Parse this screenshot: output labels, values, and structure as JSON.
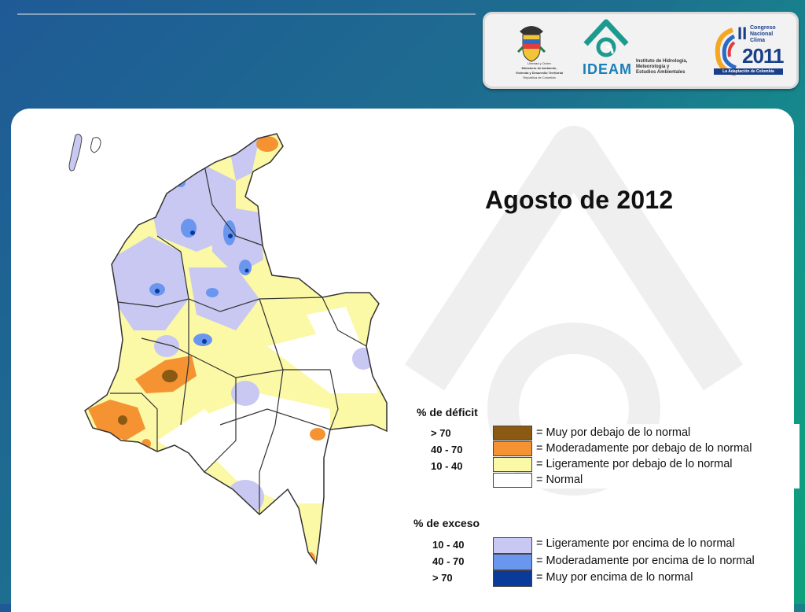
{
  "header": {
    "logos": [
      {
        "name": "ministerio-ambiente",
        "lines": [
          "Libertad y Orden",
          "Ministerio de Ambiente,",
          "Vivienda y Desarrollo Territorial",
          "República de Colombia"
        ]
      },
      {
        "name": "ideam",
        "brand": "IDEAM",
        "lines": [
          "Instituto de Hidrología,",
          "Meteorología y",
          "Estudios Ambientales"
        ]
      },
      {
        "name": "congreso-clima",
        "roman": "II",
        "lines": [
          "Congreso",
          "Nacional",
          "Clima"
        ],
        "year": "2011",
        "tagline": "La Adaptación de Colombia"
      }
    ]
  },
  "map": {
    "title": "Agosto de 2012",
    "legend": {
      "deficit": {
        "heading": "% de déficit",
        "items": [
          {
            "range": "> 70",
            "label": "= Muy por debajo de lo normal",
            "color": "#8b5a12"
          },
          {
            "range": "40 -  70",
            "label": "= Moderadamente por debajo de lo normal",
            "color": "#f59333"
          },
          {
            "range": "10 -  40",
            "label": "= Ligeramente por debajo de lo normal",
            "color": "#fbf8a6"
          },
          {
            "range": "",
            "label": "= Normal",
            "color": "#ffffff"
          }
        ]
      },
      "exceso": {
        "heading": "% de exceso",
        "items": [
          {
            "range": "10 -  40",
            "label": "= Ligeramente por encima de lo normal",
            "color": "#c8c8f3"
          },
          {
            "range": "40 -  70",
            "label": "= Moderadamente por encima de lo normal",
            "color": "#6a96f0"
          },
          {
            "range": "> 70",
            "label": "= Muy por encima de lo normal",
            "color": "#0a3a9a"
          }
        ]
      }
    }
  }
}
